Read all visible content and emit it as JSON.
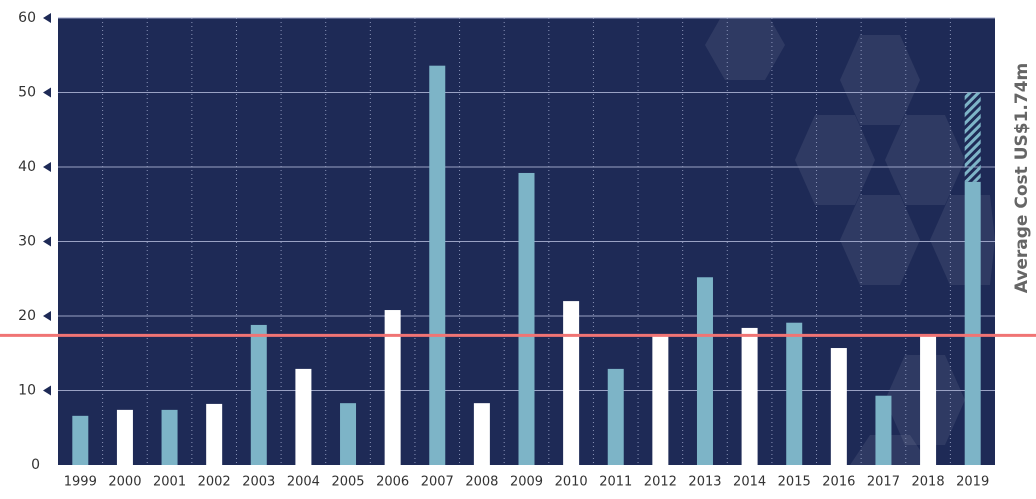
{
  "chart_data": {
    "type": "bar",
    "categories": [
      "1999",
      "2000",
      "2001",
      "2002",
      "2003",
      "2004",
      "2005",
      "2006",
      "2007",
      "2008",
      "2009",
      "2010",
      "2011",
      "2012",
      "2013",
      "2014",
      "2015",
      "2016",
      "2017",
      "2018",
      "2019"
    ],
    "values": [
      6.6,
      7.4,
      7.4,
      8.2,
      18.8,
      12.9,
      8.3,
      20.8,
      53.6,
      8.3,
      39.2,
      22.0,
      12.9,
      17.3,
      25.2,
      18.4,
      19.1,
      15.7,
      9.3,
      17.3,
      38.0
    ],
    "colors": [
      "#7db4c7",
      "#ffffff",
      "#7db4c7",
      "#ffffff",
      "#7db4c7",
      "#ffffff",
      "#7db4c7",
      "#ffffff",
      "#7db4c7",
      "#ffffff",
      "#7db4c7",
      "#ffffff",
      "#7db4c7",
      "#ffffff",
      "#7db4c7",
      "#ffffff",
      "#7db4c7",
      "#ffffff",
      "#7db4c7",
      "#ffffff",
      "#7db4c7"
    ],
    "hatched_values": [
      null,
      null,
      null,
      null,
      null,
      null,
      null,
      null,
      null,
      null,
      null,
      null,
      null,
      null,
      null,
      null,
      null,
      null,
      null,
      null,
      12
    ],
    "average": 17.4,
    "average_label": "Average Cost US$1.74m",
    "average_color": "#f07474",
    "ylim": [
      0,
      60
    ],
    "yticks": [
      0,
      10,
      20,
      30,
      40,
      50,
      60
    ],
    "grid": true
  }
}
